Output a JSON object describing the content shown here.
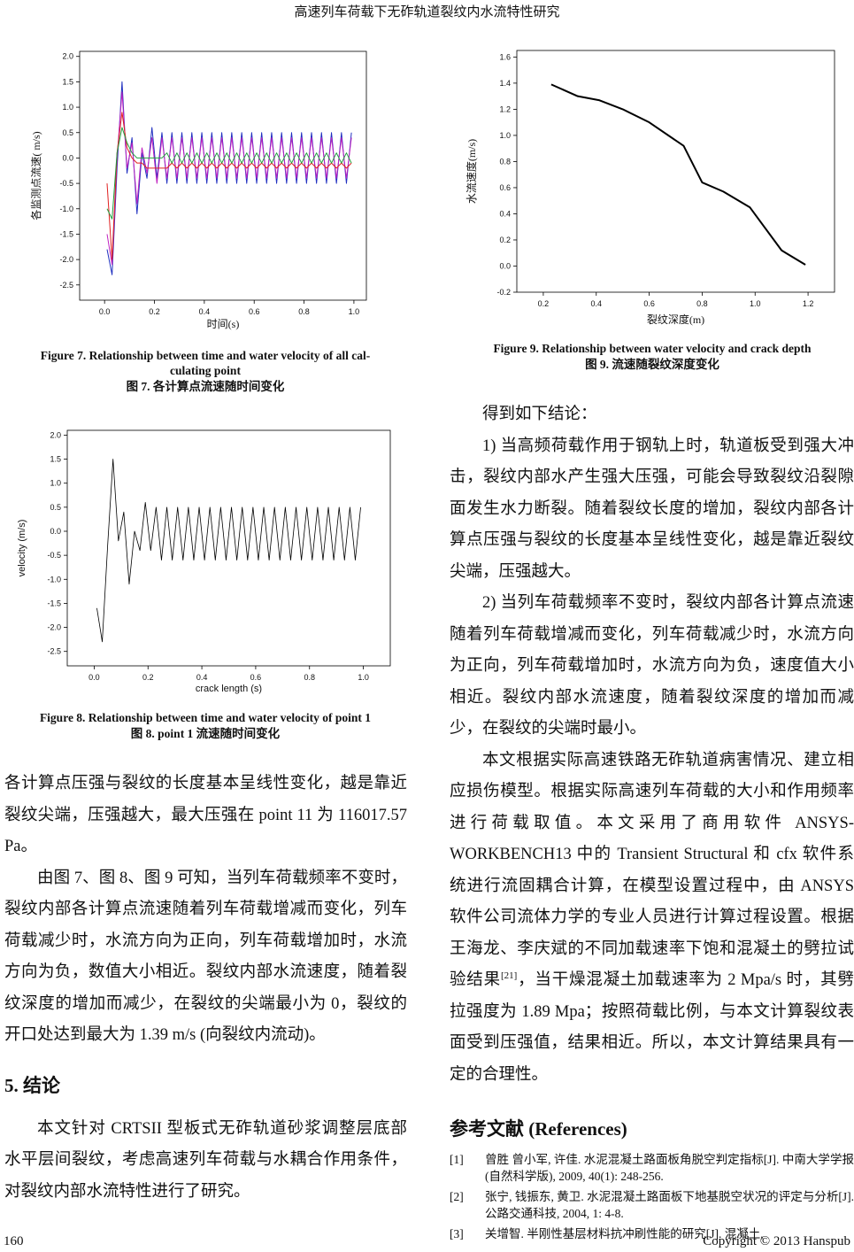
{
  "header": {
    "title": "高速列车荷载下无砟轨道裂纹内水流特性研究"
  },
  "chart_data": [
    {
      "type": "line",
      "y_label": "各监测点流速( m/s)",
      "x_label": "时间(s)",
      "caption_en": [
        "Figure 7. Relationship between time and water velocity of all cal-",
        "culating point"
      ],
      "caption_cn": "图 7. 各计算点流速随时间变化",
      "x": [
        0.01,
        0.03,
        0.05,
        0.07,
        0.09,
        0.11,
        0.13,
        0.15,
        0.17,
        0.19,
        0.21,
        0.23,
        0.25,
        0.27,
        0.29,
        0.31,
        0.33,
        0.35,
        0.37,
        0.39,
        0.41,
        0.43,
        0.45,
        0.47,
        0.49,
        0.51,
        0.53,
        0.55,
        0.57,
        0.59,
        0.61,
        0.63,
        0.65,
        0.67,
        0.69,
        0.71,
        0.73,
        0.75,
        0.77,
        0.79,
        0.81,
        0.83,
        0.85,
        0.87,
        0.89,
        0.91,
        0.93,
        0.95,
        0.97,
        0.99
      ],
      "series": [
        {
          "color": "#2030c0",
          "values": [
            -1.8,
            -2.3,
            -0.2,
            1.5,
            -0.3,
            0.4,
            -1.1,
            0.1,
            -0.4,
            0.6,
            -0.4,
            0.5,
            -0.5,
            0.5,
            -0.5,
            0.5,
            -0.5,
            0.5,
            -0.5,
            0.5,
            -0.5,
            0.5,
            -0.5,
            0.5,
            -0.5,
            0.5,
            -0.5,
            0.5,
            -0.5,
            0.5,
            -0.5,
            0.5,
            -0.5,
            0.5,
            -0.5,
            0.5,
            -0.5,
            0.5,
            -0.5,
            0.5,
            -0.5,
            0.5,
            -0.5,
            0.5,
            -0.5,
            0.5,
            -0.5,
            0.5,
            -0.5,
            0.5
          ]
        },
        {
          "color": "#c020c0",
          "values": [
            -1.5,
            -2.1,
            0.0,
            1.3,
            -0.2,
            0.3,
            -0.9,
            0.2,
            -0.3,
            0.4,
            -0.5,
            0.4,
            -0.4,
            0.4,
            -0.4,
            0.4,
            -0.4,
            0.4,
            -0.4,
            0.4,
            -0.4,
            0.4,
            -0.4,
            0.4,
            -0.4,
            0.4,
            -0.4,
            0.4,
            -0.4,
            0.4,
            -0.4,
            0.4,
            -0.4,
            0.4,
            -0.4,
            0.4,
            -0.4,
            0.4,
            -0.4,
            0.4,
            -0.4,
            0.4,
            -0.4,
            0.4,
            -0.4,
            0.4,
            -0.4,
            0.4,
            -0.4,
            0.4
          ]
        },
        {
          "color": "#e02020",
          "values": [
            -0.5,
            -2.0,
            0.1,
            0.9,
            0.2,
            0.0,
            -0.1,
            -0.1,
            -0.2,
            -0.2,
            -0.2,
            -0.2,
            -0.2,
            -0.1,
            -0.2,
            -0.1,
            -0.2,
            -0.1,
            -0.2,
            -0.1,
            -0.2,
            -0.1,
            -0.2,
            -0.1,
            -0.2,
            -0.1,
            -0.2,
            -0.1,
            -0.2,
            -0.1,
            -0.2,
            -0.1,
            -0.2,
            -0.1,
            -0.2,
            -0.1,
            -0.2,
            -0.1,
            -0.2,
            -0.1,
            -0.2,
            -0.1,
            -0.2,
            -0.1,
            -0.2,
            -0.1,
            -0.2,
            -0.1,
            -0.2,
            -0.1
          ]
        },
        {
          "color": "#20a040",
          "values": [
            -1.0,
            -1.2,
            0.1,
            0.6,
            0.3,
            0.1,
            0.0,
            0.0,
            0.0,
            0.0,
            0.0,
            0.0,
            0.1,
            -0.1,
            0.1,
            -0.1,
            0.1,
            -0.1,
            0.1,
            -0.1,
            0.1,
            -0.1,
            0.1,
            -0.1,
            0.1,
            -0.1,
            0.1,
            -0.1,
            0.1,
            -0.1,
            0.1,
            -0.1,
            0.1,
            -0.1,
            0.1,
            -0.1,
            0.1,
            -0.1,
            0.1,
            -0.1,
            0.1,
            -0.1,
            0.1,
            -0.1,
            0.1,
            -0.1,
            0.1,
            -0.1,
            0.1,
            -0.1
          ]
        }
      ],
      "xlim": [
        -0.1,
        1.05
      ],
      "ylim": [
        -2.8,
        2.1
      ],
      "xticks": [
        {
          "value": 0,
          "label": "0.0"
        },
        0.2,
        0.4,
        0.6,
        0.8,
        {
          "value": 1,
          "label": "1.0"
        }
      ],
      "yticks": [
        -2.5,
        {
          "value": -2,
          "label": "-2.0"
        },
        -1.5,
        {
          "value": -1,
          "label": "-1.0"
        },
        -0.5,
        {
          "value": 0,
          "label": "0.0"
        },
        0.5,
        {
          "value": 1,
          "label": "1.0"
        },
        1.5,
        {
          "value": 2,
          "label": "2.0"
        }
      ]
    },
    {
      "type": "line",
      "y_label": "velocity (m/s)",
      "x_label": "crack length (s)",
      "caption_en": [
        "Figure 8. Relationship between time and water velocity of point 1"
      ],
      "caption_cn": "图 8. point 1 流速随时间变化",
      "x": [
        0.01,
        0.03,
        0.05,
        0.07,
        0.09,
        0.11,
        0.13,
        0.15,
        0.17,
        0.19,
        0.21,
        0.23,
        0.25,
        0.27,
        0.29,
        0.31,
        0.33,
        0.35,
        0.37,
        0.39,
        0.41,
        0.43,
        0.45,
        0.47,
        0.49,
        0.51,
        0.53,
        0.55,
        0.57,
        0.59,
        0.61,
        0.63,
        0.65,
        0.67,
        0.69,
        0.71,
        0.73,
        0.75,
        0.77,
        0.79,
        0.81,
        0.83,
        0.85,
        0.87,
        0.89,
        0.91,
        0.93,
        0.95,
        0.97,
        0.99
      ],
      "series": [
        {
          "color": "#000000",
          "values": [
            -1.6,
            -2.3,
            -0.3,
            1.5,
            -0.2,
            0.4,
            -1.1,
            0.0,
            -0.4,
            0.6,
            -0.4,
            0.5,
            -0.6,
            0.5,
            -0.6,
            0.5,
            -0.6,
            0.5,
            -0.6,
            0.5,
            -0.6,
            0.5,
            -0.6,
            0.5,
            -0.6,
            0.5,
            -0.6,
            0.5,
            -0.6,
            0.5,
            -0.6,
            0.5,
            -0.6,
            0.5,
            -0.6,
            0.5,
            -0.6,
            0.5,
            -0.6,
            0.5,
            -0.6,
            0.5,
            -0.6,
            0.5,
            -0.6,
            0.5,
            -0.6,
            0.5,
            -0.6,
            0.5
          ]
        }
      ],
      "xlim": [
        -0.1,
        1.1
      ],
      "ylim": [
        -2.8,
        2.1
      ],
      "xticks": [
        {
          "value": 0,
          "label": "0.0"
        },
        0.2,
        0.4,
        0.6,
        0.8,
        {
          "value": 1,
          "label": "1.0"
        }
      ],
      "yticks": [
        -2.5,
        {
          "value": -2,
          "label": "-2.0"
        },
        -1.5,
        {
          "value": -1,
          "label": "-1.0"
        },
        -0.5,
        {
          "value": 0,
          "label": "0.0"
        },
        0.5,
        {
          "value": 1,
          "label": "1.0"
        },
        1.5,
        {
          "value": 2,
          "label": "2.0"
        }
      ]
    },
    {
      "type": "line",
      "y_label": "水流速度(m/s)",
      "x_label": "裂纹深度(m)",
      "caption_en": [
        "Figure 9. Relationship between water velocity and crack depth"
      ],
      "caption_cn": "图 9. 流速随裂纹深度变化",
      "x": [
        0.23,
        0.33,
        0.41,
        0.5,
        0.6,
        0.73,
        0.8,
        0.88,
        0.98,
        1.1,
        1.19
      ],
      "series": [
        {
          "color": "#000000",
          "values": [
            1.39,
            1.3,
            1.27,
            1.2,
            1.1,
            0.92,
            0.64,
            0.57,
            0.45,
            0.12,
            0.01
          ]
        }
      ],
      "xlim": [
        0.1,
        1.3
      ],
      "ylim": [
        -0.2,
        1.65
      ],
      "xticks": [
        0.2,
        0.4,
        0.6,
        0.8,
        {
          "value": 1,
          "label": "1.0"
        },
        1.2
      ],
      "yticks": [
        -0.2,
        {
          "value": 0,
          "label": "0.0"
        },
        0.2,
        0.4,
        0.6,
        0.8,
        {
          "value": 1,
          "label": "1.0"
        },
        1.2,
        1.4,
        1.6
      ]
    }
  ],
  "left_column": {
    "p1": "各计算点压强与裂纹的长度基本呈线性变化，越是靠近裂纹尖端，压强越大，最大压强在 point 11 为 116017.57 Pa。",
    "p2": "由图 7、图 8、图 9 可知，当列车荷载频率不变时，裂纹内部各计算点流速随着列车荷载增减而变化，列车荷载减少时，水流方向为正向，列车荷载增加时，水流方向为负，数值大小相近。裂纹内部水流速度，随着裂纹深度的增加而减少，在裂纹的尖端最小为 0，裂纹的开口处达到最大为 1.39 m/s (向裂纹内流动)。",
    "heading": "5. 结论",
    "p3": "本文针对 CRTSII 型板式无砟轨道砂浆调整层底部水平层间裂纹，考虑高速列车荷载与水耦合作用条件，对裂纹内部水流特性进行了研究。"
  },
  "right_column": {
    "p1": "得到如下结论：",
    "p2": "1) 当高频荷载作用于钢轨上时，轨道板受到强大冲击，裂纹内部水产生强大压强，可能会导致裂纹沿裂隙面发生水力断裂。随着裂纹长度的增加，裂纹内部各计算点压强与裂纹的长度基本呈线性变化，越是靠近裂纹尖端，压强越大。",
    "p3": "2) 当列车荷载频率不变时，裂纹内部各计算点流速随着列车荷载增减而变化，列车荷载减少时，水流方向为正向，列车荷载增加时，水流方向为负，速度值大小相近。裂纹内部水流速度，随着裂纹深度的增加而减少，在裂纹的尖端时最小。",
    "p4_a": "本文根据实际高速铁路无砟轨道病害情况、建立相应损伤模型。根据实际高速列车荷载的大小和作用频率进行荷载取值。本文采用了商用软件 ANSYS-WORKBENCH13 中的 Transient Structural 和 cfx 软件系统进行流固耦合计算，在模型设置过程中，由 ANSYS 软件公司流体力学的专业人员进行计算过程设置。根据王海龙、李庆斌的不同加载速率下饱和混凝土的劈拉试验结果",
    "p4_sup": "[21]",
    "p4_b": "，当干燥混凝土加载速率为 2 Mpa/s 时，其劈拉强度为 1.89 Mpa；按照荷载比例，与本文计算裂纹表面受到压强值，结果相近。所以，本文计算结果具有一定的合理性。",
    "references_heading": "参考文献 (References)",
    "references": [
      {
        "num": "[1]",
        "text": "曾胜 曾小军, 许佳. 水泥混凝土路面板角脱空判定指标[J]. 中南大学学报(自然科学版), 2009, 40(1): 248-256."
      },
      {
        "num": "[2]",
        "text": "张宁, 钱振东, 黄卫. 水泥混凝土路面板下地基脱空状况的评定与分析[J]. 公路交通科技, 2004, 1: 4-8."
      },
      {
        "num": "[3]",
        "text": "关增智. 半刚性基层材料抗冲刷性能的研究[J]. 混凝土,"
      }
    ]
  },
  "footer": {
    "page": "160",
    "copyright": "Copyright © 2013 Hanspub"
  }
}
